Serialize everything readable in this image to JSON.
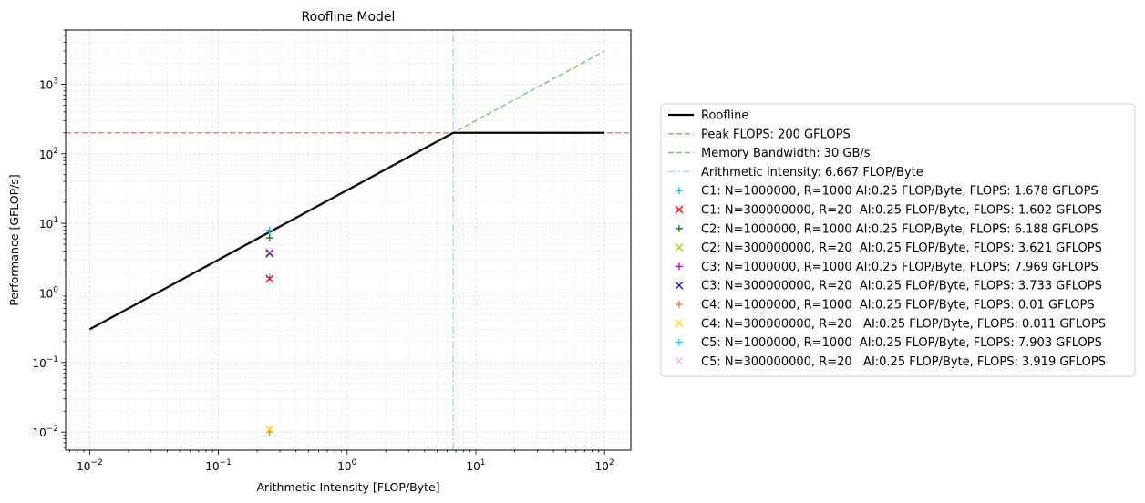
{
  "chart_data": {
    "type": "line",
    "title": "Roofline Model",
    "xlabel": "Arithmetic Intensity [FLOP/Byte]",
    "ylabel": "Performance [GFLOP/s]",
    "xscale": "log",
    "yscale": "log",
    "xlim": [
      0.0065,
      160
    ],
    "ylim": [
      0.0055,
      6000
    ],
    "grid": true,
    "legend_placement": "outside-right",
    "x_ticks": [
      {
        "value": 0.01,
        "base": "10",
        "exp": "−2"
      },
      {
        "value": 0.1,
        "base": "10",
        "exp": "−1"
      },
      {
        "value": 1,
        "base": "10",
        "exp": "0"
      },
      {
        "value": 10,
        "base": "10",
        "exp": "1"
      },
      {
        "value": 100,
        "base": "10",
        "exp": "2"
      }
    ],
    "y_ticks": [
      {
        "value": 0.01,
        "base": "10",
        "exp": "−2"
      },
      {
        "value": 0.1,
        "base": "10",
        "exp": "−1"
      },
      {
        "value": 1,
        "base": "10",
        "exp": "0"
      },
      {
        "value": 10,
        "base": "10",
        "exp": "1"
      },
      {
        "value": 100,
        "base": "10",
        "exp": "2"
      },
      {
        "value": 1000,
        "base": "10",
        "exp": "3"
      }
    ],
    "lines": [
      {
        "name": "Roofline",
        "color": "#000000",
        "style": "solid",
        "width": 2.2,
        "points": [
          [
            0.01,
            0.3
          ],
          [
            6.667,
            200
          ],
          [
            100,
            200
          ]
        ]
      },
      {
        "name": "Peak FLOPS: 200 GFLOPS",
        "color": "#ff8080",
        "style": "dashed",
        "width": 1.5,
        "points": [
          [
            0.0065,
            200
          ],
          [
            160,
            200
          ]
        ]
      },
      {
        "name": "Memory Bandwidth: 30 GB/s",
        "color": "#80c080",
        "style": "dashed",
        "width": 1.5,
        "points": [
          [
            0.01,
            0.3
          ],
          [
            100,
            3000
          ]
        ]
      },
      {
        "name": "Arithmetic Intensity: 6.667 FLOP/Byte",
        "color": "#a8dde4",
        "style": "dashdot",
        "width": 1.5,
        "points": [
          [
            6.667,
            0.0055
          ],
          [
            6.667,
            6000
          ]
        ]
      }
    ],
    "points": [
      {
        "name": "C1: N=1000000, R=1000 AI:0.25 FLOP/Byte, FLOPS: 1.678 GFLOPS",
        "x": 0.25,
        "y": 1.678,
        "marker": "+",
        "color": "#00bfbf"
      },
      {
        "name": "C1: N=300000000, R=20  AI:0.25 FLOP/Byte, FLOPS: 1.602 GFLOPS",
        "x": 0.25,
        "y": 1.602,
        "marker": "x",
        "color": "#ff0000"
      },
      {
        "name": "C2: N=1000000, R=1000 AI:0.25 FLOP/Byte, FLOPS: 6.188 GFLOPS",
        "x": 0.25,
        "y": 6.188,
        "marker": "+",
        "color": "#008000"
      },
      {
        "name": "C2: N=300000000, R=20  AI:0.25 FLOP/Byte, FLOPS: 3.621 GFLOPS",
        "x": 0.25,
        "y": 3.621,
        "marker": "x",
        "color": "#bfbf00"
      },
      {
        "name": "C3: N=1000000, R=1000 AI:0.25 FLOP/Byte, FLOPS: 7.969 GFLOPS",
        "x": 0.25,
        "y": 7.969,
        "marker": "+",
        "color": "#bf00bf"
      },
      {
        "name": "C3: N=300000000, R=20  AI:0.25 FLOP/Byte, FLOPS: 3.733 GFLOPS",
        "x": 0.25,
        "y": 3.733,
        "marker": "x",
        "color": "#0000ff"
      },
      {
        "name": "C4: N=1000000, R=1000  AI:0.25 FLOP/Byte, FLOPS: 0.01 GFLOPS",
        "x": 0.25,
        "y": 0.01,
        "marker": "+",
        "color": "#e8803a"
      },
      {
        "name": "C4: N=300000000, R=20   AI:0.25 FLOP/Byte, FLOPS: 0.011 GFLOPS",
        "x": 0.25,
        "y": 0.011,
        "marker": "x",
        "color": "#ffd700"
      },
      {
        "name": "C5: N=1000000, R=1000  AI:0.25 FLOP/Byte, FLOPS: 7.903 GFLOPS",
        "x": 0.25,
        "y": 7.903,
        "marker": "+",
        "color": "#00e5ee"
      },
      {
        "name": "C5: N=300000000, R=20   AI:0.25 FLOP/Byte, FLOPS: 3.919 GFLOPS",
        "x": 0.25,
        "y": 3.919,
        "marker": "x",
        "color": "#ffb6c1"
      }
    ]
  }
}
